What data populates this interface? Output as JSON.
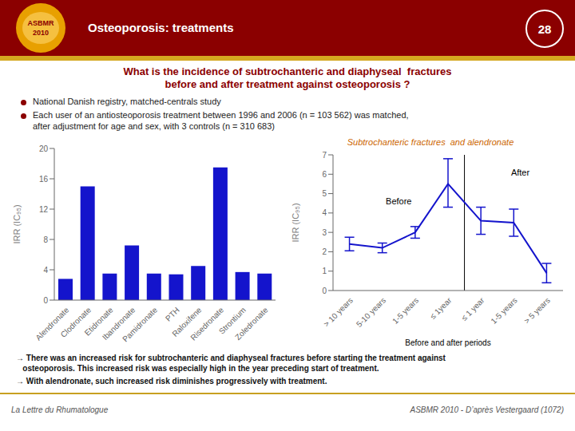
{
  "title": [
    "What is the incidence of subtrochanteric and diaphyseal  fractures",
    "before and after treatment against osteoporosis ?"
  ],
  "annotations": [
    "ASBMR",
    "2010",
    "Osteoporosis: treatments",
    "28",
    "National Danish registry, matched-centrals study",
    "Each user of an antiosteoporosis treatment between 1996 and 2006 (n = 103 562) was matched,",
    "after adjustment for age and sex, with 3 controls (n = 310 683)",
    "→ There was an increased risk for subtrochanteric and diaphyseal fractures before starting the treatment against",
    "   osteoporosis. This increased risk was especially high in the year preceding start of treatment.",
    "→ With alendronate, such increased risk diminishes progressively with treatment.",
    "La Lettre du Rhumatologue",
    "ASBMR 2010 - D’après Vestergaard (1072)"
  ],
  "chart_data": [
    {
      "type": "bar",
      "categories": [
        "Alendronate",
        "Clodronate",
        "Etidronate",
        "Ibandronate",
        "Pamidronate",
        "PTH",
        "Raloxifene",
        "Risedronate",
        "Strontium",
        "Zoledronate"
      ],
      "values": [
        2.8,
        15.0,
        3.5,
        7.2,
        3.5,
        3.4,
        4.5,
        17.5,
        3.7,
        3.5
      ],
      "color": "#1414CC",
      "ylabel": "IRR (IC₉₅)",
      "ylim": [
        0,
        20
      ],
      "yticks": [
        0,
        4,
        8,
        12,
        16,
        20
      ]
    },
    {
      "type": "line",
      "title": "Subtrochanteric fractures  and alendronate",
      "categories": [
        "> 10 years",
        "5-10 years",
        "1-5 years",
        "≤ 1year",
        "≤ 1 year",
        "1-5 years",
        "> 5 years"
      ],
      "values": [
        2.4,
        2.2,
        3.0,
        5.5,
        3.6,
        3.5,
        0.9
      ],
      "yerr_low": [
        0.35,
        0.25,
        0.3,
        1.2,
        0.7,
        0.7,
        0.5
      ],
      "yerr_high": [
        0.35,
        0.25,
        0.3,
        1.3,
        0.7,
        0.7,
        0.5
      ],
      "color": "#1414CC",
      "marker": "none",
      "ylabel": "IRR (IC₉₅)",
      "xlabel": "Before and after periods",
      "ylim": [
        0,
        7
      ],
      "yticks": [
        0,
        1,
        2,
        3,
        4,
        5,
        6,
        7
      ],
      "annotations": [
        "Before",
        "After"
      ]
    }
  ]
}
